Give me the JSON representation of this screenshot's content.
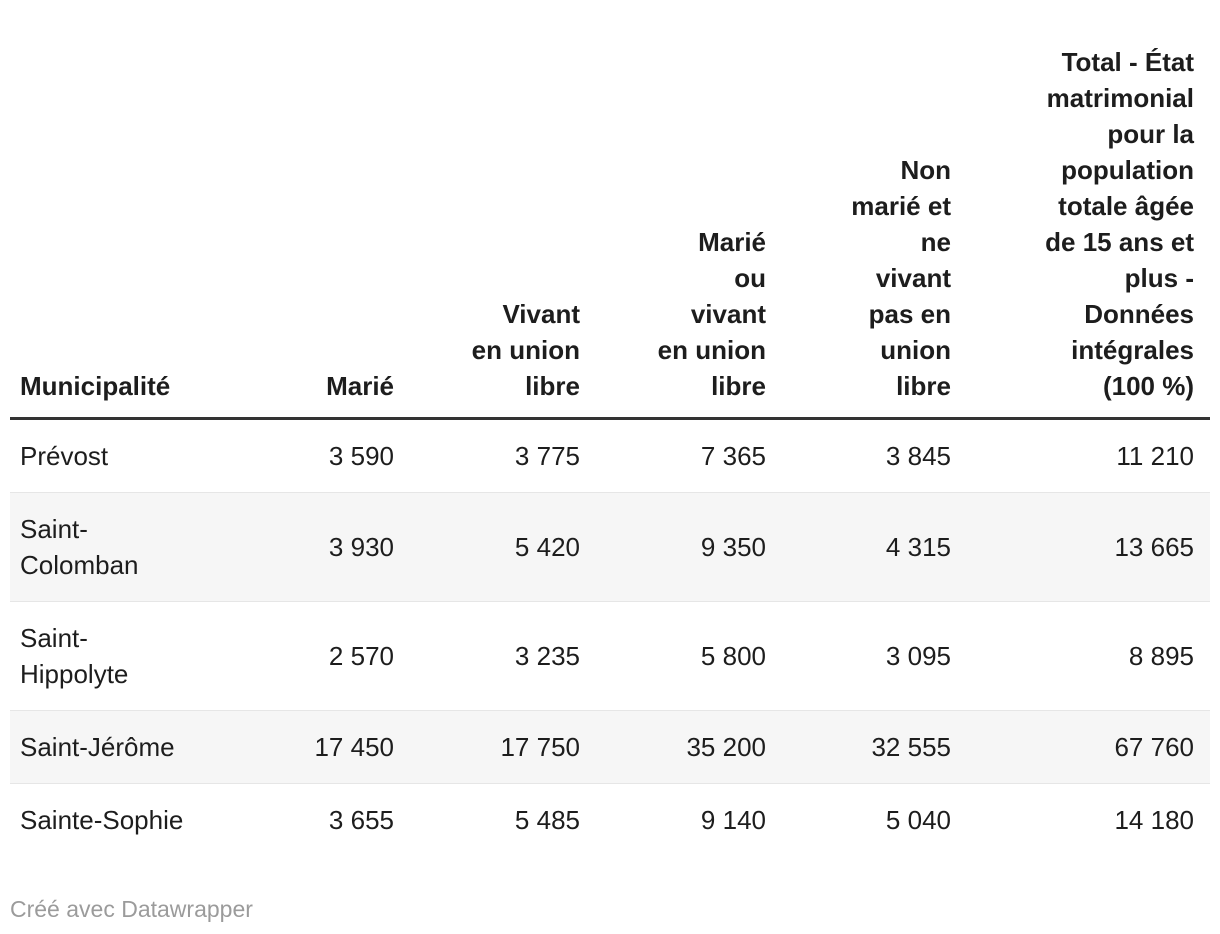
{
  "chart_data": {
    "type": "table",
    "title": "",
    "columns": [
      "Municipalité",
      "Marié",
      "Vivant en union libre",
      "Marié ou vivant en union libre",
      "Non marié et ne vivant pas en union libre",
      "Total - État matrimonial pour la population totale âgée de 15 ans et plus - Données intégrales (100 %)"
    ],
    "rows": [
      [
        "Prévost",
        3590,
        3775,
        7365,
        3845,
        11210
      ],
      [
        "Saint-Colomban",
        3930,
        5420,
        9350,
        4315,
        13665
      ],
      [
        "Saint-Hippolyte",
        2570,
        3235,
        5800,
        3095,
        8895
      ],
      [
        "Saint-Jérôme",
        17450,
        17750,
        35200,
        32555,
        67760
      ],
      [
        "Sainte-Sophie",
        3655,
        5485,
        9140,
        5040,
        14180
      ]
    ]
  },
  "table": {
    "columns": [
      {
        "id": "municipalite",
        "label": "Municipalité"
      },
      {
        "id": "marie",
        "label": "Marié"
      },
      {
        "id": "vivant-union-libre",
        "label": "Vivant\nen union\nlibre"
      },
      {
        "id": "marie-ou-union-libre",
        "label": "Marié\nou\nvivant\nen union\nlibre"
      },
      {
        "id": "non-marie",
        "label": "Non\nmarié et\nne\nvivant\npas en\nunion\nlibre"
      },
      {
        "id": "total",
        "label": "Total - État\nmatrimonial\npour la\npopulation\ntotale âgée\nde 15 ans et\nplus -\nDonnées\nintégrales\n(100 %)"
      }
    ],
    "rows": [
      {
        "name": "Prévost",
        "values": [
          "3 590",
          "3 775",
          "7 365",
          "3 845",
          "11 210"
        ]
      },
      {
        "name": "Saint-\nColomban",
        "values": [
          "3 930",
          "5 420",
          "9 350",
          "4 315",
          "13 665"
        ]
      },
      {
        "name": "Saint-\nHippolyte",
        "values": [
          "2 570",
          "3 235",
          "5 800",
          "3 095",
          "8 895"
        ]
      },
      {
        "name": "Saint-Jérôme",
        "values": [
          "17 450",
          "17 750",
          "35 200",
          "32 555",
          "67 760"
        ]
      },
      {
        "name": "Sainte-Sophie",
        "values": [
          "3 655",
          "5 485",
          "9 140",
          "5 040",
          "14 180"
        ]
      }
    ]
  },
  "footer": {
    "credit": "Créé avec Datawrapper"
  },
  "colors": {
    "text": "#1d1d1d",
    "header_rule": "#333333",
    "row_alt_background": "#f6f6f6",
    "row_divider": "#e6e6e6",
    "credit_text": "#9b9b9b",
    "background": "#ffffff"
  }
}
